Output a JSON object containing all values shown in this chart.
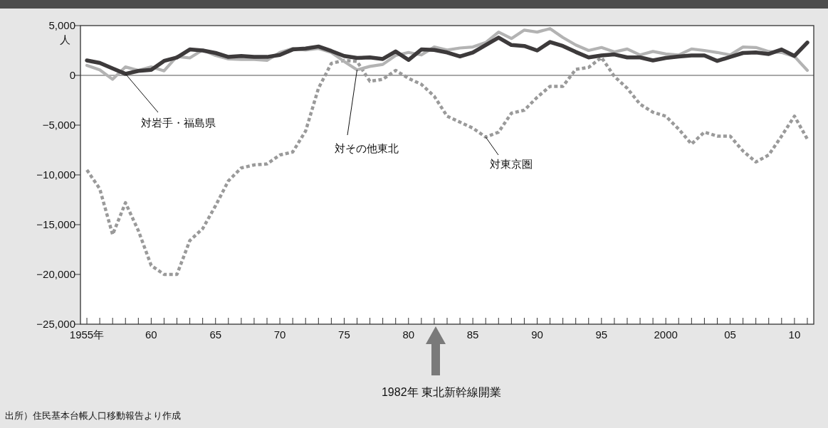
{
  "chart_data": {
    "type": "line",
    "ylabel": "人",
    "x": [
      1955,
      1956,
      1957,
      1958,
      1959,
      1960,
      1961,
      1962,
      1963,
      1964,
      1965,
      1966,
      1967,
      1968,
      1969,
      1970,
      1971,
      1972,
      1973,
      1974,
      1975,
      1976,
      1977,
      1978,
      1979,
      1980,
      1981,
      1982,
      1983,
      1984,
      1985,
      1986,
      1987,
      1988,
      1989,
      1990,
      1991,
      1992,
      1993,
      1994,
      1995,
      1996,
      1997,
      1998,
      1999,
      2000,
      2001,
      2002,
      2003,
      2004,
      2005,
      2006,
      2007,
      2008,
      2009,
      2010,
      2011
    ],
    "series": [
      {
        "name": "対岩手・福島県",
        "color": "#3d3a3b",
        "line_style": "solid",
        "values": [
          1500,
          1250,
          700,
          150,
          450,
          550,
          1450,
          1800,
          2600,
          2500,
          2250,
          1850,
          1950,
          1850,
          1850,
          2050,
          2600,
          2700,
          2900,
          2450,
          1950,
          1750,
          1800,
          1650,
          2400,
          1550,
          2600,
          2550,
          2300,
          1900,
          2300,
          3050,
          3800,
          3050,
          2950,
          2500,
          3350,
          2950,
          2350,
          1800,
          2000,
          2100,
          1800,
          1800,
          1500,
          1750,
          1900,
          2000,
          2000,
          1450,
          1850,
          2250,
          2300,
          2150,
          2600,
          1950,
          3300
        ]
      },
      {
        "name": "対その他東北",
        "color": "#b3b3b3",
        "line_style": "solid",
        "values": [
          1000,
          550,
          -400,
          850,
          500,
          850,
          450,
          1900,
          1750,
          2550,
          2000,
          1650,
          1600,
          1600,
          1500,
          2300,
          2700,
          2550,
          2700,
          2300,
          1400,
          550,
          900,
          1100,
          2000,
          2300,
          2050,
          2850,
          2550,
          2750,
          2850,
          3300,
          4350,
          3700,
          4550,
          4350,
          4700,
          3800,
          3050,
          2500,
          2800,
          2350,
          2650,
          2050,
          2400,
          2150,
          2050,
          2650,
          2500,
          2300,
          2050,
          2850,
          2800,
          2400,
          2300,
          1900,
          500
        ]
      },
      {
        "name": "対東京圏",
        "color": "#9a9a9a",
        "line_style": "dotted",
        "values": [
          -9500,
          -11400,
          -16000,
          -12800,
          -15600,
          -19100,
          -20000,
          -20000,
          -16600,
          -15400,
          -13100,
          -10600,
          -9300,
          -9000,
          -8900,
          -8000,
          -7700,
          -5600,
          -1300,
          1200,
          1500,
          1400,
          -600,
          -400,
          500,
          -300,
          -900,
          -2100,
          -4100,
          -4700,
          -5300,
          -6200,
          -5700,
          -3800,
          -3500,
          -2200,
          -1100,
          -1100,
          600,
          800,
          1800,
          -100,
          -1300,
          -2900,
          -3700,
          -4100,
          -5400,
          -6900,
          -5700,
          -6100,
          -6100,
          -7600,
          -8700,
          -8000,
          -6100,
          -4100,
          -6400
        ]
      }
    ],
    "xlim": [
      1954.5,
      2011.5
    ],
    "xticks": [
      {
        "value": 1955,
        "label": "1955年"
      },
      {
        "value": 1956,
        "label": null
      },
      {
        "value": 1957,
        "label": null
      },
      {
        "value": 1958,
        "label": null
      },
      {
        "value": 1959,
        "label": null
      },
      {
        "value": 1960,
        "label": "60"
      },
      {
        "value": 1961,
        "label": null
      },
      {
        "value": 1962,
        "label": null
      },
      {
        "value": 1963,
        "label": null
      },
      {
        "value": 1964,
        "label": null
      },
      {
        "value": 1965,
        "label": "65"
      },
      {
        "value": 1966,
        "label": null
      },
      {
        "value": 1967,
        "label": null
      },
      {
        "value": 1968,
        "label": null
      },
      {
        "value": 1969,
        "label": null
      },
      {
        "value": 1970,
        "label": "70"
      },
      {
        "value": 1971,
        "label": null
      },
      {
        "value": 1972,
        "label": null
      },
      {
        "value": 1973,
        "label": null
      },
      {
        "value": 1974,
        "label": null
      },
      {
        "value": 1975,
        "label": "75"
      },
      {
        "value": 1976,
        "label": null
      },
      {
        "value": 1977,
        "label": null
      },
      {
        "value": 1978,
        "label": null
      },
      {
        "value": 1979,
        "label": null
      },
      {
        "value": 1980,
        "label": "80"
      },
      {
        "value": 1981,
        "label": null
      },
      {
        "value": 1982,
        "label": null
      },
      {
        "value": 1983,
        "label": null
      },
      {
        "value": 1984,
        "label": null
      },
      {
        "value": 1985,
        "label": "85"
      },
      {
        "value": 1986,
        "label": null
      },
      {
        "value": 1987,
        "label": null
      },
      {
        "value": 1988,
        "label": null
      },
      {
        "value": 1989,
        "label": null
      },
      {
        "value": 1990,
        "label": "90"
      },
      {
        "value": 1991,
        "label": null
      },
      {
        "value": 1992,
        "label": null
      },
      {
        "value": 1993,
        "label": null
      },
      {
        "value": 1994,
        "label": null
      },
      {
        "value": 1995,
        "label": "95"
      },
      {
        "value": 1996,
        "label": null
      },
      {
        "value": 1997,
        "label": null
      },
      {
        "value": 1998,
        "label": null
      },
      {
        "value": 1999,
        "label": null
      },
      {
        "value": 2000,
        "label": "2000"
      },
      {
        "value": 2001,
        "label": null
      },
      {
        "value": 2002,
        "label": null
      },
      {
        "value": 2003,
        "label": null
      },
      {
        "value": 2004,
        "label": null
      },
      {
        "value": 2005,
        "label": "05"
      },
      {
        "value": 2006,
        "label": null
      },
      {
        "value": 2007,
        "label": null
      },
      {
        "value": 2008,
        "label": null
      },
      {
        "value": 2009,
        "label": null
      },
      {
        "value": 2010,
        "label": "10"
      },
      {
        "value": 2011,
        "label": null
      }
    ],
    "ylim": [
      -25000,
      5000
    ],
    "yticks": [
      {
        "value": 5000,
        "label": "5,000"
      },
      {
        "value": 0,
        "label": "0"
      },
      {
        "value": -5000,
        "label": "−5,000"
      },
      {
        "value": -10000,
        "label": "−10,000"
      },
      {
        "value": -15000,
        "label": "−15,000"
      },
      {
        "value": -20000,
        "label": "−20,000"
      },
      {
        "value": -25000,
        "label": "−25,000"
      }
    ],
    "ref_lines": [
      {
        "axis": "y",
        "value": 0,
        "color": "#555555"
      }
    ],
    "grid": false,
    "annotations": [
      "1982年 東北新幹線開業",
      "出所）住民基本台帳人口移動報告より作成"
    ]
  }
}
